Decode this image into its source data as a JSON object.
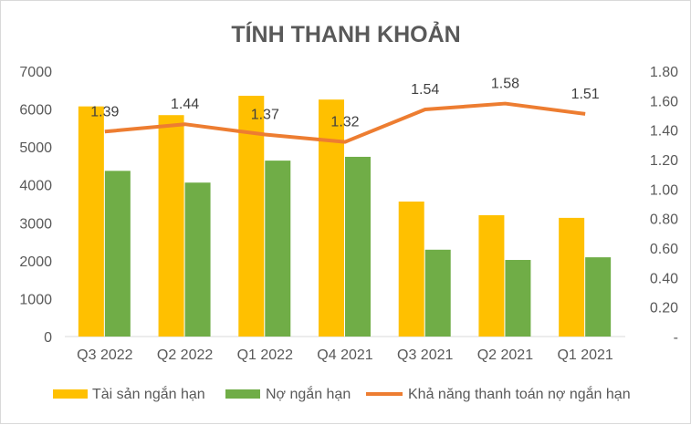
{
  "chart_data": {
    "type": "bar+line",
    "title": "TÍNH THANH KHOẢN",
    "categories": [
      "Q3 2022",
      "Q2 2022",
      "Q1 2022",
      "Q4 2021",
      "Q3 2021",
      "Q2 2021",
      "Q1 2021"
    ],
    "series": [
      {
        "name": "Tài sản ngắn hạn",
        "type": "bar",
        "axis": "left",
        "color": "#FFC000",
        "values": [
          6070,
          5840,
          6350,
          6250,
          3560,
          3200,
          3130
        ]
      },
      {
        "name": "Nợ ngắn hạn",
        "type": "bar",
        "axis": "left",
        "color": "#70AD47",
        "values": [
          4370,
          4060,
          4640,
          4740,
          2290,
          2020,
          2090
        ]
      },
      {
        "name": "Khả năng thanh toán nợ ngắn hạn",
        "type": "line",
        "axis": "right",
        "color": "#ED7D31",
        "values": [
          1.39,
          1.44,
          1.37,
          1.32,
          1.54,
          1.58,
          1.51
        ],
        "labels": [
          "1.39",
          "1.44",
          "1.37",
          "1.32",
          "1.54",
          "1.58",
          "1.51"
        ]
      }
    ],
    "left_axis": {
      "ylim": [
        0,
        7000
      ],
      "ticks": [
        "0",
        "1000",
        "2000",
        "3000",
        "4000",
        "5000",
        "6000",
        "7000"
      ]
    },
    "right_axis": {
      "ylim": [
        0,
        1.8
      ],
      "ticks": [
        "-",
        "0.20",
        "0.40",
        "0.60",
        "0.80",
        "1.00",
        "1.20",
        "1.40",
        "1.60",
        "1.80"
      ]
    },
    "grid": false,
    "legend": "bottom"
  }
}
